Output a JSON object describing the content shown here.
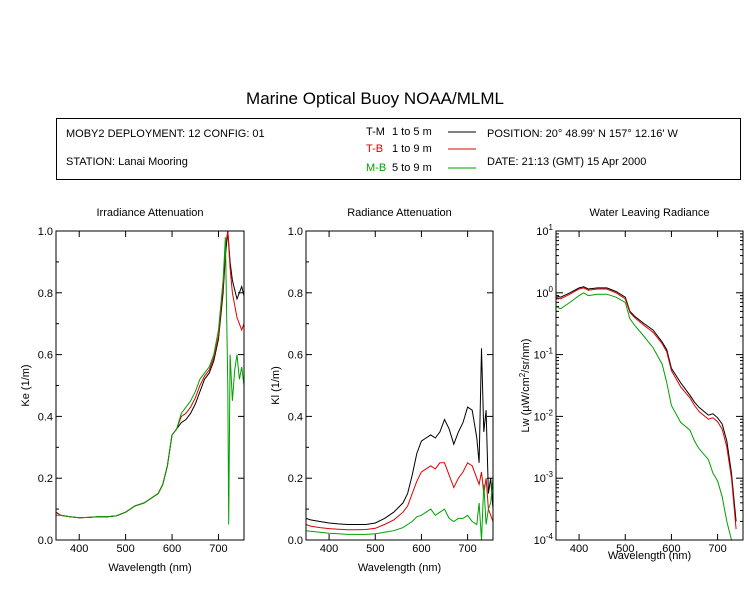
{
  "header": {
    "title": "Marine Optical Buoy NOAA/MLML",
    "deployment": "MOBY2 DEPLOYMENT: 12 CONFIG: 01",
    "station": "STATION: Lanai Mooring",
    "position": "POSITION: 20° 48.99' N   157° 12.16' W",
    "date": "DATE: 21:13 (GMT) 15 Apr 2000"
  },
  "legend": [
    {
      "code": "T-M",
      "range": "1 to 5  m",
      "color": "#000000"
    },
    {
      "code": "T-B",
      "range": "1 to 9  m",
      "color": "#e00000"
    },
    {
      "code": "M-B",
      "range": "5 to 9  m",
      "color": "#00a000"
    }
  ],
  "chart_data": [
    {
      "type": "line",
      "title": "Irradiance Attenuation",
      "xlabel": "Wavelength (nm)",
      "ylabel": "Ke  (1/m)",
      "xlim": [
        350,
        755
      ],
      "ylim": [
        0,
        1
      ],
      "xticks": [
        "400",
        "500",
        "600",
        "700"
      ],
      "yticks": [
        "0.0",
        "0.2",
        "0.4",
        "0.6",
        "0.8",
        "1.0"
      ],
      "series": [
        {
          "name": "T-M",
          "color": "#000000",
          "x": [
            350,
            360,
            380,
            400,
            420,
            440,
            460,
            480,
            500,
            520,
            540,
            560,
            570,
            580,
            590,
            600,
            605,
            610,
            620,
            630,
            640,
            650,
            660,
            670,
            680,
            690,
            700,
            710,
            715,
            720,
            725,
            730,
            740,
            750,
            755
          ],
          "y": [
            0.09,
            0.08,
            0.075,
            0.072,
            0.073,
            0.075,
            0.075,
            0.078,
            0.09,
            0.11,
            0.12,
            0.14,
            0.15,
            0.18,
            0.24,
            0.34,
            0.35,
            0.36,
            0.38,
            0.39,
            0.41,
            0.44,
            0.48,
            0.52,
            0.54,
            0.58,
            0.65,
            0.8,
            0.92,
            1.0,
            0.9,
            0.84,
            0.78,
            0.82,
            0.79
          ]
        },
        {
          "name": "T-B",
          "color": "#e00000",
          "x": [
            350,
            360,
            380,
            400,
            420,
            440,
            460,
            480,
            500,
            520,
            540,
            560,
            570,
            580,
            590,
            600,
            605,
            610,
            620,
            630,
            640,
            650,
            660,
            670,
            680,
            690,
            700,
            710,
            715,
            720,
            725,
            730,
            740,
            750,
            755
          ],
          "y": [
            0.09,
            0.08,
            0.075,
            0.072,
            0.073,
            0.075,
            0.075,
            0.078,
            0.09,
            0.11,
            0.12,
            0.14,
            0.15,
            0.18,
            0.24,
            0.34,
            0.35,
            0.36,
            0.4,
            0.41,
            0.43,
            0.46,
            0.5,
            0.53,
            0.55,
            0.59,
            0.66,
            0.82,
            0.95,
            1.0,
            0.88,
            0.8,
            0.72,
            0.68,
            0.7
          ]
        },
        {
          "name": "M-B",
          "color": "#00a000",
          "x": [
            350,
            360,
            380,
            400,
            420,
            440,
            460,
            480,
            500,
            520,
            540,
            560,
            570,
            580,
            590,
            600,
            605,
            610,
            620,
            630,
            640,
            650,
            660,
            670,
            680,
            690,
            700,
            710,
            715,
            720,
            722,
            725,
            730,
            735,
            740,
            745,
            750,
            755
          ],
          "y": [
            0.08,
            0.08,
            0.075,
            0.072,
            0.073,
            0.075,
            0.075,
            0.078,
            0.09,
            0.11,
            0.12,
            0.14,
            0.15,
            0.18,
            0.24,
            0.34,
            0.35,
            0.36,
            0.41,
            0.43,
            0.45,
            0.48,
            0.52,
            0.54,
            0.56,
            0.6,
            0.68,
            0.84,
            0.98,
            0.5,
            0.05,
            0.6,
            0.45,
            0.55,
            0.6,
            0.52,
            0.56,
            0.5
          ]
        }
      ]
    },
    {
      "type": "line",
      "title": "Radiance Attenuation",
      "xlabel": "Wavelength (nm)",
      "ylabel": "Kl  (1/m)",
      "xlim": [
        350,
        755
      ],
      "ylim": [
        0,
        1
      ],
      "xticks": [
        "400",
        "500",
        "600",
        "700"
      ],
      "yticks": [
        "0.0",
        "0.2",
        "0.4",
        "0.6",
        "0.8",
        "1.0"
      ],
      "series": [
        {
          "name": "T-M",
          "color": "#000000",
          "x": [
            350,
            360,
            380,
            400,
            420,
            440,
            460,
            480,
            500,
            520,
            540,
            560,
            570,
            580,
            590,
            600,
            610,
            620,
            630,
            640,
            650,
            660,
            670,
            680,
            690,
            700,
            710,
            720,
            725,
            730,
            735,
            740,
            745,
            750,
            755
          ],
          "y": [
            0.07,
            0.065,
            0.06,
            0.055,
            0.052,
            0.05,
            0.05,
            0.05,
            0.055,
            0.07,
            0.09,
            0.12,
            0.15,
            0.21,
            0.28,
            0.32,
            0.33,
            0.34,
            0.33,
            0.35,
            0.39,
            0.36,
            0.31,
            0.35,
            0.38,
            0.43,
            0.42,
            0.33,
            0.25,
            0.62,
            0.35,
            0.42,
            0.15,
            0.2,
            0.1
          ]
        },
        {
          "name": "T-B",
          "color": "#e00000",
          "x": [
            350,
            360,
            380,
            400,
            420,
            440,
            460,
            480,
            500,
            520,
            540,
            560,
            570,
            580,
            590,
            600,
            610,
            620,
            630,
            640,
            650,
            660,
            670,
            680,
            690,
            700,
            710,
            720,
            725,
            730,
            735,
            740,
            745,
            750,
            755
          ],
          "y": [
            0.05,
            0.045,
            0.04,
            0.037,
            0.035,
            0.033,
            0.033,
            0.034,
            0.038,
            0.05,
            0.065,
            0.09,
            0.11,
            0.15,
            0.19,
            0.22,
            0.23,
            0.24,
            0.23,
            0.25,
            0.25,
            0.21,
            0.17,
            0.2,
            0.22,
            0.25,
            0.24,
            0.2,
            0.18,
            0.22,
            0.15,
            0.2,
            0.1,
            0.08,
            0.06
          ]
        },
        {
          "name": "M-B",
          "color": "#00a000",
          "x": [
            350,
            360,
            380,
            400,
            420,
            440,
            460,
            480,
            500,
            520,
            540,
            560,
            570,
            580,
            590,
            600,
            610,
            620,
            630,
            640,
            650,
            660,
            670,
            680,
            690,
            700,
            710,
            720,
            725,
            730,
            735,
            740,
            745,
            750,
            755
          ],
          "y": [
            0.03,
            0.028,
            0.025,
            0.022,
            0.02,
            0.018,
            0.018,
            0.018,
            0.02,
            0.025,
            0.03,
            0.04,
            0.05,
            0.06,
            0.075,
            0.08,
            0.09,
            0.1,
            0.08,
            0.09,
            0.1,
            0.07,
            0.06,
            0.07,
            0.07,
            0.08,
            0.06,
            0.05,
            0.12,
            0.0,
            0.18,
            0.05,
            0.1,
            0.12,
            0.2
          ]
        }
      ]
    },
    {
      "type": "line",
      "title": "Water Leaving Radiance",
      "xlabel": "Wavelength (nm)",
      "ylabel_main": "Lw  (µW/cm",
      "ylabel_sup": "2",
      "ylabel_tail": "/sr/nm)",
      "yscale": "log",
      "xlim": [
        350,
        755
      ],
      "ylim": [
        0.0001,
        10
      ],
      "xticks": [
        "400",
        "500",
        "600",
        "700"
      ],
      "yticks": [
        {
          "base": "10",
          "exp": "1"
        },
        {
          "base": "10",
          "exp": "0"
        },
        {
          "base": "10",
          "exp": "-1"
        },
        {
          "base": "10",
          "exp": "-2"
        },
        {
          "base": "10",
          "exp": "-3"
        },
        {
          "base": "10",
          "exp": "-4"
        }
      ],
      "series": [
        {
          "name": "T-M",
          "color": "#000000",
          "x": [
            350,
            360,
            380,
            400,
            410,
            420,
            440,
            460,
            480,
            500,
            510,
            520,
            540,
            560,
            580,
            590,
            600,
            620,
            640,
            650,
            660,
            680,
            690,
            700,
            710,
            720,
            730,
            740
          ],
          "y": [
            0.9,
            0.85,
            1.0,
            1.2,
            1.25,
            1.15,
            1.2,
            1.2,
            1.05,
            0.85,
            0.5,
            0.42,
            0.32,
            0.25,
            0.16,
            0.12,
            0.06,
            0.035,
            0.022,
            0.017,
            0.014,
            0.0105,
            0.011,
            0.0095,
            0.0075,
            0.004,
            0.0012,
            0.0002
          ]
        },
        {
          "name": "T-B",
          "color": "#e00000",
          "x": [
            350,
            360,
            380,
            400,
            410,
            420,
            440,
            460,
            480,
            500,
            510,
            520,
            540,
            560,
            580,
            590,
            600,
            620,
            640,
            650,
            660,
            680,
            690,
            700,
            710,
            720,
            730,
            740
          ],
          "y": [
            0.85,
            0.8,
            0.95,
            1.15,
            1.2,
            1.1,
            1.15,
            1.15,
            1.0,
            0.8,
            0.48,
            0.4,
            0.3,
            0.23,
            0.15,
            0.11,
            0.055,
            0.03,
            0.02,
            0.015,
            0.012,
            0.009,
            0.0095,
            0.0082,
            0.0062,
            0.0032,
            0.001,
            0.00015
          ]
        },
        {
          "name": "M-B",
          "color": "#00a000",
          "x": [
            350,
            360,
            380,
            400,
            410,
            420,
            440,
            460,
            480,
            500,
            510,
            520,
            540,
            560,
            580,
            590,
            600,
            620,
            640,
            650,
            660,
            680,
            690,
            700,
            710,
            720,
            730,
            740
          ],
          "y": [
            0.6,
            0.55,
            0.7,
            0.9,
            1.0,
            0.9,
            0.95,
            0.95,
            0.85,
            0.7,
            0.38,
            0.3,
            0.2,
            0.13,
            0.07,
            0.035,
            0.015,
            0.008,
            0.006,
            0.004,
            0.003,
            0.002,
            0.0012,
            0.0009,
            0.0005,
            0.0002,
            0.0001,
            0.0001
          ]
        }
      ]
    }
  ]
}
